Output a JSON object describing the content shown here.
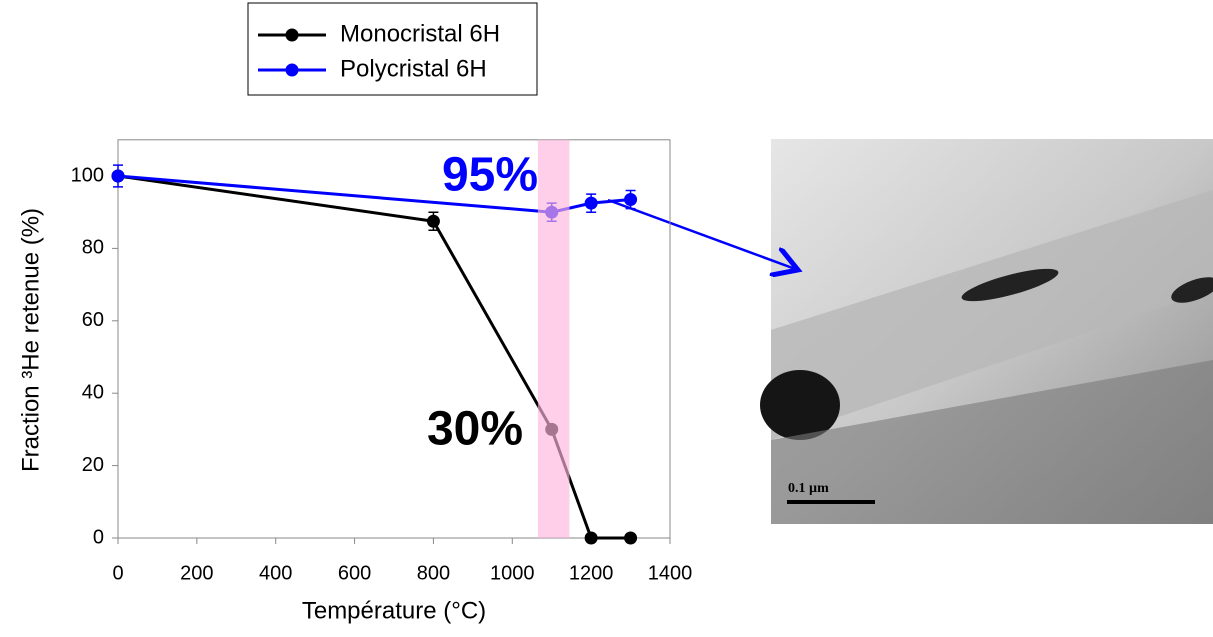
{
  "chart_data": {
    "type": "line",
    "xlabel": "Température (°C)",
    "ylabel": "Fraction ³He retenue (%)",
    "xlim": [
      0,
      1400
    ],
    "xticks": [
      0,
      200,
      400,
      600,
      800,
      1000,
      1200,
      1400
    ],
    "ylim": [
      0,
      110
    ],
    "yticks": [
      0,
      20,
      40,
      60,
      80,
      100
    ],
    "legend": "top-left",
    "series": [
      {
        "name": "Monocristal 6H",
        "color": "#000000",
        "x": [
          0,
          800,
          1100,
          1200,
          1300
        ],
        "values": [
          100,
          87.5,
          30,
          0,
          0
        ],
        "errors": [
          0,
          2.5,
          0,
          0,
          0
        ]
      },
      {
        "name": "Polycristal 6H",
        "color": "#0000ff",
        "x": [
          0,
          1100,
          1200,
          1300
        ],
        "values": [
          100,
          90,
          92.5,
          93.5
        ],
        "errors": [
          3,
          2.5,
          2.5,
          2.5
        ]
      }
    ],
    "highlight_band": {
      "x": [
        1065,
        1145
      ],
      "color": "#ffb3dc"
    },
    "annotations": [
      {
        "text": "95%",
        "color": "#0000ff"
      },
      {
        "text": "30%",
        "color": "#000000"
      }
    ]
  },
  "image_panel": {
    "scale_label": "0.1 µm"
  }
}
